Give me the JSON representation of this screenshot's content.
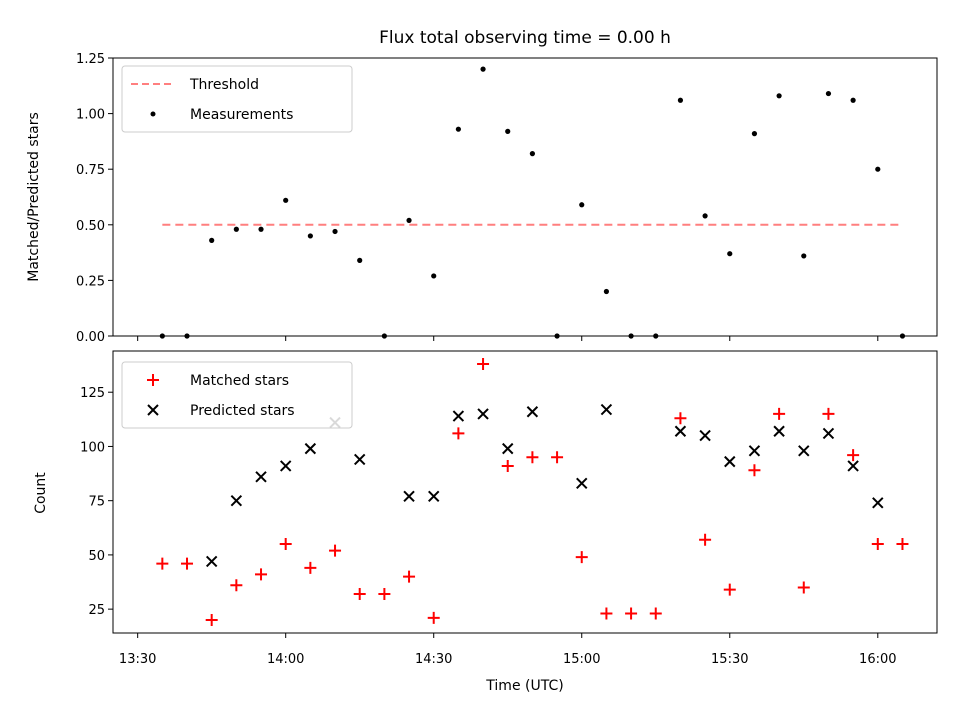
{
  "chart_data": [
    {
      "type": "scatter",
      "title": "Flux total observing time = 0.00 h",
      "xlabel": "",
      "ylabel": "Matched/Predicted stars",
      "xlim": [
        "13:25",
        "16:12"
      ],
      "ylim": [
        0,
        1.25
      ],
      "yticks": [
        "0.00",
        "0.25",
        "0.50",
        "0.75",
        "1.00",
        "1.25"
      ],
      "legend_position": "top-left",
      "series": [
        {
          "name": "Threshold",
          "style": "dashed-line",
          "color": "#ff7f7f",
          "x": [
            "13:35",
            "16:05"
          ],
          "y": [
            0.5,
            0.5
          ]
        },
        {
          "name": "Measurements",
          "style": "dot",
          "color": "#000000",
          "x": [
            "13:35",
            "13:40",
            "13:45",
            "13:50",
            "13:55",
            "14:00",
            "14:05",
            "14:10",
            "14:15",
            "14:20",
            "14:25",
            "14:30",
            "14:35",
            "14:40",
            "14:45",
            "14:50",
            "14:55",
            "15:00",
            "15:05",
            "15:10",
            "15:15",
            "15:20",
            "15:25",
            "15:30",
            "15:35",
            "15:40",
            "15:45",
            "15:50",
            "15:55",
            "16:00",
            "16:05"
          ],
          "y": [
            0.0,
            0.0,
            0.43,
            0.48,
            0.48,
            0.61,
            0.45,
            0.47,
            0.34,
            0.0,
            0.52,
            0.27,
            0.93,
            1.2,
            0.92,
            0.82,
            0.0,
            0.59,
            0.2,
            0.0,
            0.0,
            1.06,
            0.54,
            0.37,
            0.91,
            1.08,
            0.36,
            1.09,
            1.06,
            0.75,
            0.0
          ]
        }
      ]
    },
    {
      "type": "scatter",
      "title": "",
      "xlabel": "Time (UTC)",
      "ylabel": "Count",
      "xlim": [
        "13:25",
        "16:12"
      ],
      "ylim": [
        14,
        144
      ],
      "yticks": [
        "25",
        "50",
        "75",
        "100",
        "125"
      ],
      "xticks": [
        "13:30",
        "14:00",
        "14:30",
        "15:00",
        "15:30",
        "16:00"
      ],
      "legend_position": "top-left",
      "series": [
        {
          "name": "Matched stars",
          "style": "plus",
          "color": "#ff0000",
          "x": [
            "13:35",
            "13:40",
            "13:45",
            "13:50",
            "13:55",
            "14:00",
            "14:05",
            "14:10",
            "14:15",
            "14:20",
            "14:25",
            "14:30",
            "14:35",
            "14:40",
            "14:45",
            "14:50",
            "14:55",
            "15:00",
            "15:05",
            "15:10",
            "15:15",
            "15:20",
            "15:25",
            "15:30",
            "15:35",
            "15:40",
            "15:45",
            "15:50",
            "15:55",
            "16:00",
            "16:05"
          ],
          "y": [
            46,
            46,
            20,
            36,
            41,
            55,
            44,
            52,
            32,
            32,
            40,
            21,
            106,
            138,
            91,
            95,
            95,
            49,
            23,
            23,
            23,
            113,
            57,
            34,
            89,
            115,
            35,
            115,
            96,
            55,
            55
          ]
        },
        {
          "name": "Predicted stars",
          "style": "x",
          "color": "#000000",
          "x": [
            "13:45",
            "13:50",
            "13:55",
            "14:00",
            "14:05",
            "14:10",
            "14:15",
            "14:25",
            "14:30",
            "14:35",
            "14:40",
            "14:45",
            "14:50",
            "15:00",
            "15:05",
            "15:20",
            "15:25",
            "15:30",
            "15:35",
            "15:40",
            "15:45",
            "15:50",
            "15:55",
            "16:00"
          ],
          "y": [
            47,
            75,
            86,
            91,
            99,
            111,
            94,
            77,
            77,
            114,
            115,
            99,
            116,
            83,
            117,
            107,
            105,
            93,
            98,
            107,
            98,
            106,
            91,
            74
          ]
        }
      ]
    }
  ]
}
